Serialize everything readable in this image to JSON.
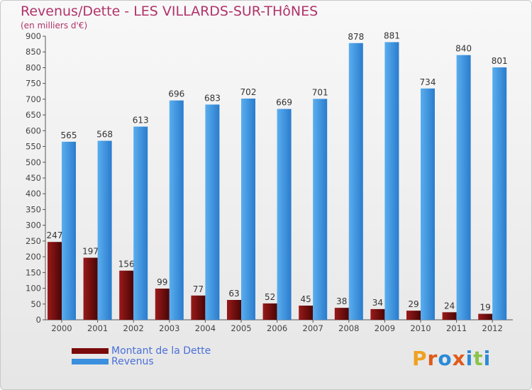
{
  "title": "Revenus/Dette - LES VILLARDS-SUR-THôNES",
  "subtitle": "(en milliers d'€)",
  "logo_text": "Proxiti",
  "colors": {
    "dette": "#7a0a0a",
    "revenus": "#3a8fde",
    "title": "#b0336a",
    "legend_text": "#4a6fd8",
    "logo": [
      "#f0a020",
      "#e05a1a",
      "#2a8ad8",
      "#e05a1a",
      "#2a8ad8",
      "#8bc34a",
      "#2a8ad8"
    ]
  },
  "chart_data": {
    "type": "bar",
    "categories": [
      "2000",
      "2001",
      "2002",
      "2003",
      "2004",
      "2005",
      "2006",
      "2007",
      "2008",
      "2009",
      "2010",
      "2011",
      "2012"
    ],
    "series": [
      {
        "name": "Montant de la Dette",
        "values": [
          247,
          197,
          156,
          99,
          77,
          63,
          52,
          45,
          38,
          34,
          29,
          24,
          19
        ]
      },
      {
        "name": "Revenus",
        "values": [
          565,
          568,
          613,
          696,
          683,
          702,
          669,
          701,
          878,
          881,
          734,
          840,
          801
        ]
      }
    ],
    "ylim": [
      0,
      900
    ],
    "yticks": [
      0,
      50,
      100,
      150,
      200,
      250,
      300,
      350,
      400,
      450,
      500,
      550,
      600,
      650,
      700,
      750,
      800,
      850,
      900
    ],
    "grid": false,
    "legend": "bottom-left"
  }
}
